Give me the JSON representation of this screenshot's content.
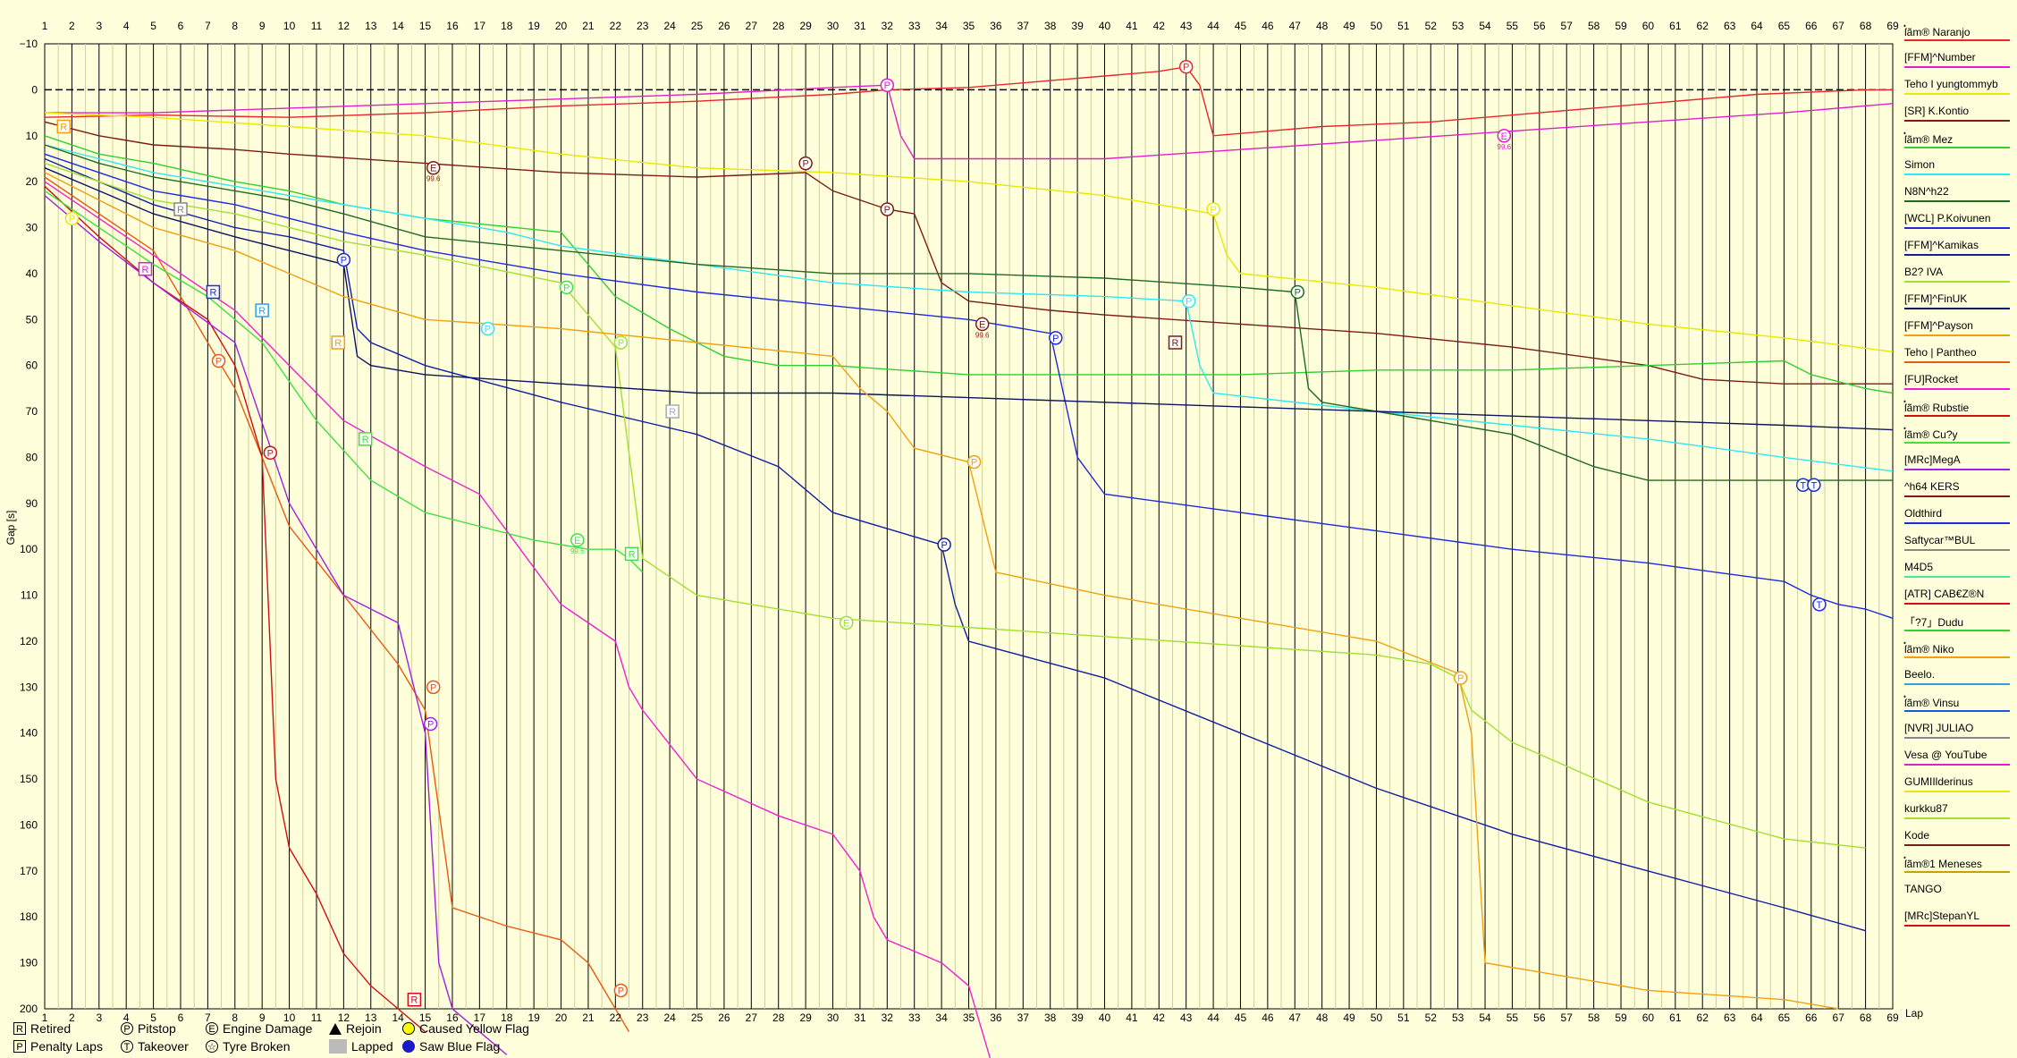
{
  "chart_data": {
    "type": "line",
    "xlabel": "Lap",
    "ylabel": "Gap [s]",
    "xlim": [
      1,
      69
    ],
    "ylim": [
      -10,
      200
    ],
    "y_inverted": true,
    "x_ticks": [
      1,
      2,
      3,
      4,
      5,
      6,
      7,
      8,
      9,
      10,
      11,
      12,
      13,
      14,
      15,
      16,
      17,
      18,
      19,
      20,
      21,
      22,
      23,
      24,
      25,
      26,
      27,
      28,
      29,
      30,
      31,
      32,
      33,
      34,
      35,
      36,
      37,
      38,
      39,
      40,
      41,
      42,
      43,
      44,
      45,
      46,
      47,
      48,
      49,
      50,
      51,
      52,
      53,
      54,
      55,
      56,
      57,
      58,
      59,
      60,
      61,
      62,
      63,
      64,
      65,
      66,
      67,
      68,
      69
    ],
    "y_ticks": [
      -10,
      0,
      10,
      20,
      30,
      40,
      50,
      60,
      70,
      80,
      90,
      100,
      110,
      120,
      130,
      140,
      150,
      160,
      170,
      180,
      190,
      200
    ],
    "grid": true,
    "legend_position": "right",
    "series": [
      {
        "name": "ſ๋ãm® Naranjo",
        "color": "#e8262b",
        "x": [
          1,
          5,
          10,
          15,
          20,
          25,
          30,
          32,
          35,
          38,
          40,
          42,
          43,
          43.5,
          44,
          48,
          52,
          56,
          60,
          64,
          68,
          69
        ],
        "y": [
          6,
          5.5,
          6,
          5,
          3.5,
          2.5,
          1,
          0,
          -0.5,
          -2,
          -3,
          -4,
          -5,
          -1,
          10,
          8,
          7,
          5,
          3,
          1,
          0,
          0
        ]
      },
      {
        "name": "[FFM]^Number",
        "color": "#e020c8",
        "x": [
          1,
          5,
          10,
          15,
          20,
          25,
          30,
          32,
          32.5,
          33,
          40,
          45,
          50,
          55,
          60,
          65,
          69
        ],
        "y": [
          5,
          5,
          4,
          3,
          2,
          1,
          -0.5,
          -1,
          10,
          15,
          15,
          13,
          11,
          9,
          7,
          5,
          3
        ]
      },
      {
        "name": "Teho I yungtommyb",
        "color": "#e8e800",
        "x": [
          1,
          5,
          10,
          15,
          20,
          25,
          30,
          35,
          40,
          43,
          44,
          44.5,
          45,
          50,
          55,
          60,
          65,
          69
        ],
        "y": [
          5,
          6,
          8,
          10,
          14,
          17,
          18,
          20,
          23,
          26,
          27,
          36,
          40,
          43,
          47,
          51,
          54,
          57
        ]
      },
      {
        "name": "[SR] K.Kontio",
        "color": "#7a1e12",
        "x": [
          1,
          3,
          5,
          8,
          10,
          15,
          20,
          25,
          29,
          30,
          32,
          33,
          34,
          35,
          38,
          40,
          45,
          50,
          55,
          60,
          62,
          65,
          69
        ],
        "y": [
          7,
          10,
          12,
          13,
          14,
          16,
          18,
          19,
          18,
          22,
          26,
          27,
          42,
          46,
          48,
          49,
          51,
          53,
          56,
          60,
          63,
          64,
          64
        ]
      },
      {
        "name": "ſ๋ãm® Mez",
        "color": "#30d030",
        "x": [
          1,
          3,
          5,
          8,
          10,
          12,
          15,
          20,
          22,
          24,
          26,
          28,
          30,
          35,
          40,
          45,
          50,
          55,
          60,
          65,
          66,
          68,
          69
        ],
        "y": [
          10,
          14,
          16,
          20,
          22,
          25,
          28,
          31,
          45,
          52,
          58,
          60,
          60,
          62,
          62,
          62,
          61,
          61,
          60,
          59,
          62,
          65,
          66
        ]
      },
      {
        "name": "Simon",
        "color": "#30e8f0",
        "x": [
          1,
          3,
          5,
          8,
          10,
          12,
          15,
          18,
          20,
          25,
          30,
          35,
          40,
          43,
          43.5,
          44,
          50,
          55,
          60,
          65,
          69
        ],
        "y": [
          12,
          15,
          18,
          21,
          23,
          25,
          28,
          31,
          34,
          38,
          42,
          44,
          45,
          46,
          60,
          66,
          70,
          73,
          76,
          80,
          83
        ]
      },
      {
        "name": "N8N^h22",
        "color": "#1f6b1f",
        "x": [
          1,
          3,
          5,
          8,
          10,
          12,
          15,
          20,
          25,
          30,
          35,
          40,
          45,
          47,
          47.5,
          48,
          50,
          52,
          55,
          58,
          60,
          65,
          69
        ],
        "y": [
          12,
          16,
          19,
          22,
          24,
          27,
          32,
          35,
          38,
          40,
          40,
          41,
          43,
          44,
          65,
          68,
          70,
          72,
          75,
          82,
          85,
          85,
          85
        ]
      },
      {
        "name": "[WCL] P.Koivunen",
        "color": "#1f2adb",
        "x": [
          1,
          3,
          5,
          8,
          10,
          12,
          15,
          20,
          25,
          30,
          35,
          38,
          39,
          40,
          45,
          50,
          55,
          60,
          65,
          66,
          67,
          68,
          69
        ],
        "y": [
          14,
          18,
          22,
          25,
          28,
          31,
          35,
          40,
          44,
          47,
          50,
          53,
          80,
          88,
          92,
          96,
          100,
          103,
          107,
          110,
          112,
          113,
          115
        ]
      },
      {
        "name": "[FFM]^Kamikas",
        "color": "#1020a0",
        "x": [
          1,
          3,
          5,
          8,
          10,
          12,
          12.5,
          13,
          15,
          20,
          25,
          28,
          30,
          34,
          34.5,
          35,
          40,
          45,
          50,
          55,
          60,
          65,
          68
        ],
        "y": [
          15,
          20,
          25,
          30,
          32,
          35,
          52,
          55,
          60,
          68,
          75,
          82,
          92,
          99,
          112,
          120,
          128,
          140,
          152,
          162,
          170,
          178,
          183
        ]
      },
      {
        "name": "B2? IVA",
        "color": "#a0e030",
        "x": [
          1,
          3,
          5,
          8,
          10,
          12,
          15,
          20,
          22,
          23,
          25,
          30,
          35,
          40,
          45,
          50,
          52,
          53,
          53.5,
          55,
          60,
          65,
          68
        ],
        "y": [
          16,
          20,
          24,
          27,
          30,
          33,
          36,
          42,
          56,
          102,
          110,
          115,
          117,
          119,
          121,
          123,
          125,
          128,
          135,
          142,
          155,
          163,
          165
        ]
      },
      {
        "name": "[FFM]^FinUK",
        "color": "#0a1460",
        "x": [
          1,
          3,
          5,
          8,
          10,
          12,
          12.5,
          13,
          15,
          20,
          25,
          30,
          35,
          40,
          45,
          50,
          55,
          60,
          65,
          69
        ],
        "y": [
          17,
          22,
          27,
          32,
          35,
          38,
          58,
          60,
          62,
          64,
          66,
          66,
          67,
          68,
          69,
          70,
          71,
          72,
          73,
          74
        ]
      },
      {
        "name": "[FFM]^Payson",
        "color": "#f0a010",
        "x": [
          1,
          3,
          5,
          8,
          10,
          12,
          15,
          20,
          25,
          30,
          31,
          32,
          33,
          35,
          36,
          40,
          45,
          50,
          53,
          53.5,
          54,
          60,
          65,
          67
        ],
        "y": [
          18,
          24,
          30,
          35,
          40,
          45,
          50,
          52,
          55,
          58,
          65,
          70,
          78,
          81,
          105,
          110,
          115,
          120,
          127,
          140,
          190,
          196,
          198,
          200
        ]
      },
      {
        "name": "Teho | Pantheo",
        "color": "#e85a10",
        "x": [
          1,
          3,
          5,
          7,
          8,
          9,
          10,
          12,
          14,
          15,
          16,
          18,
          20,
          21,
          22,
          22.5
        ],
        "y": [
          19,
          27,
          35,
          55,
          65,
          80,
          95,
          110,
          125,
          135,
          178,
          182,
          185,
          190,
          200,
          205
        ]
      },
      {
        "name": "[FU]Rocket",
        "color": "#f020d0",
        "x": [
          1,
          3,
          5,
          8,
          10,
          12,
          15,
          17,
          18,
          20,
          22,
          22.5,
          23,
          25,
          28,
          30,
          31,
          31.5,
          32,
          34,
          35,
          36
        ],
        "y": [
          20,
          28,
          36,
          48,
          60,
          72,
          82,
          88,
          96,
          112,
          120,
          130,
          135,
          150,
          158,
          162,
          170,
          180,
          185,
          190,
          195,
          215
        ]
      },
      {
        "name": "ſ๋ãm® Rubstie",
        "color": "#d01010",
        "x": [
          1,
          3,
          5,
          7,
          8,
          9,
          9.5,
          10,
          11,
          12,
          13,
          14,
          15
        ],
        "y": [
          21,
          32,
          42,
          50,
          60,
          80,
          150,
          165,
          175,
          188,
          195,
          200,
          205
        ]
      },
      {
        "name": "ſ๋ãm® Cu?y",
        "color": "#40e040",
        "x": [
          1,
          3,
          5,
          7,
          9,
          11,
          13,
          15,
          17,
          19,
          21,
          22,
          22.5,
          23
        ],
        "y": [
          22,
          30,
          38,
          45,
          55,
          72,
          85,
          92,
          95,
          98,
          100,
          100,
          102,
          105
        ]
      },
      {
        "name": "[MRc]MegA",
        "color": "#a020e0",
        "x": [
          1,
          3,
          5,
          8,
          10,
          12,
          13,
          14,
          15,
          15.5,
          16,
          17,
          18
        ],
        "y": [
          23,
          33,
          42,
          55,
          90,
          110,
          113,
          116,
          140,
          190,
          200,
          205,
          210
        ]
      }
    ],
    "markers": [
      {
        "label": "P",
        "lap": 43,
        "gap": -5,
        "color": "#e8262b"
      },
      {
        "label": "P",
        "lap": 32,
        "gap": -1,
        "color": "#e020c8"
      },
      {
        "label": "E",
        "lap": 54.7,
        "gap": 10,
        "color": "#e020c8",
        "note": "99.6"
      },
      {
        "label": "E",
        "lap": 15.3,
        "gap": 17,
        "color": "#7a1e12",
        "note": "99.6"
      },
      {
        "label": "P",
        "lap": 29,
        "gap": 16,
        "color": "#7a1e12"
      },
      {
        "label": "P",
        "lap": 32,
        "gap": 26,
        "color": "#7a1e12"
      },
      {
        "label": "P",
        "lap": 44,
        "gap": 26,
        "color": "#e8e800"
      },
      {
        "label": "R",
        "lap": 1.7,
        "gap": 8,
        "color": "#f0a010"
      },
      {
        "label": "P",
        "lap": 2,
        "gap": 28,
        "color": "#e8e800"
      },
      {
        "label": "R",
        "lap": 6,
        "gap": 26,
        "color": "#888888"
      },
      {
        "label": "P",
        "lap": 12,
        "gap": 37,
        "color": "#1f2adb"
      },
      {
        "label": "R",
        "lap": 4.7,
        "gap": 39,
        "color": "#e020c8"
      },
      {
        "label": "R",
        "lap": 7.2,
        "gap": 44,
        "color": "#1f2adb"
      },
      {
        "label": "R",
        "lap": 9,
        "gap": 48,
        "color": "#30a0e8"
      },
      {
        "label": "P",
        "lap": 20.2,
        "gap": 43,
        "color": "#40e040"
      },
      {
        "label": "P",
        "lap": 43.1,
        "gap": 46,
        "color": "#30e8f0"
      },
      {
        "label": "P",
        "lap": 47.1,
        "gap": 44,
        "color": "#1f6b1f"
      },
      {
        "label": "P",
        "lap": 17.3,
        "gap": 52,
        "color": "#30e8f0"
      },
      {
        "label": "E",
        "lap": 35.5,
        "gap": 51,
        "color": "#7a1e12",
        "note": "99.6"
      },
      {
        "label": "P",
        "lap": 38.2,
        "gap": 54,
        "color": "#1f2adb"
      },
      {
        "label": "R",
        "lap": 42.6,
        "gap": 55,
        "color": "#7a1e12"
      },
      {
        "label": "P",
        "lap": 22.2,
        "gap": 55,
        "color": "#a0e030"
      },
      {
        "label": "R",
        "lap": 11.8,
        "gap": 55,
        "color": "#f0a010"
      },
      {
        "label": "P",
        "lap": 7.4,
        "gap": 59,
        "color": "#e85a10"
      },
      {
        "label": "R",
        "lap": 24.1,
        "gap": 70,
        "color": "#aaaaaa"
      },
      {
        "label": "R",
        "lap": 12.8,
        "gap": 76,
        "color": "#40e040"
      },
      {
        "label": "P",
        "lap": 9.3,
        "gap": 79,
        "color": "#d01010"
      },
      {
        "label": "P",
        "lap": 35.2,
        "gap": 81,
        "color": "#f0a010"
      },
      {
        "label": "T",
        "lap": 65.7,
        "gap": 86,
        "color": "#1f2adb"
      },
      {
        "label": "T",
        "lap": 66.1,
        "gap": 86,
        "color": "#1f2adb"
      },
      {
        "label": "E",
        "lap": 20.6,
        "gap": 98,
        "color": "#40e040",
        "note": "99.6"
      },
      {
        "label": "R",
        "lap": 22.6,
        "gap": 101,
        "color": "#40e040"
      },
      {
        "label": "P",
        "lap": 34.1,
        "gap": 99,
        "color": "#1020a0"
      },
      {
        "label": "T",
        "lap": 66.3,
        "gap": 112,
        "color": "#1f2adb"
      },
      {
        "label": "E",
        "lap": 30.5,
        "gap": 116,
        "color": "#a0e030"
      },
      {
        "label": "P",
        "lap": 53.1,
        "gap": 128,
        "color": "#f0a010"
      },
      {
        "label": "P",
        "lap": 15.3,
        "gap": 130,
        "color": "#e85a10"
      },
      {
        "label": "P",
        "lap": 15.2,
        "gap": 138,
        "color": "#a020e0"
      },
      {
        "label": "R",
        "lap": 14.6,
        "gap": 198,
        "color": "#d01010"
      },
      {
        "label": "P",
        "lap": 22.2,
        "gap": 196,
        "color": "#e85a10"
      }
    ]
  },
  "drivers": [
    {
      "name": "ſ๋ãm® Naranjo",
      "color": "#e8262b"
    },
    {
      "name": "[FFM]^Number",
      "color": "#e020c8"
    },
    {
      "name": "Teho I yungtommyb",
      "color": "#e8e800"
    },
    {
      "name": "[SR] K.Kontio",
      "color": "#7a1e12"
    },
    {
      "name": "ſ๋ãm® Mez",
      "color": "#30d030"
    },
    {
      "name": "Simon",
      "color": "#30e8f0"
    },
    {
      "name": "N8N^h22",
      "color": "#1f6b1f"
    },
    {
      "name": "[WCL] P.Koivunen",
      "color": "#1f2adb"
    },
    {
      "name": "[FFM]^Kamikas",
      "color": "#1020a0"
    },
    {
      "name": "B2? IVA",
      "color": "#a0e030"
    },
    {
      "name": "[FFM]^FinUK",
      "color": "#0a1460"
    },
    {
      "name": "[FFM]^Payson",
      "color": "#f0a010"
    },
    {
      "name": "Teho | Pantheo",
      "color": "#e85a10"
    },
    {
      "name": "[FU]Rocket",
      "color": "#f020d0"
    },
    {
      "name": "ſ๋ãm® Rubstie",
      "color": "#d01010"
    },
    {
      "name": "ſ๋ãm® Cu?y",
      "color": "#40e040"
    },
    {
      "name": "[MRc]MegA",
      "color": "#a020e0"
    },
    {
      "name": "^h64 KERS",
      "color": "#7a1e12"
    },
    {
      "name": "Oldthird",
      "color": "#1f2adb"
    },
    {
      "name": "Saftycar™BUL",
      "color": "#888888"
    },
    {
      "name": "M4D5",
      "color": "#40e8a0"
    },
    {
      "name": "[ATR] CAB€Z®N",
      "color": "#d01010"
    },
    {
      "name": "「?7」Dudu",
      "color": "#30d030"
    },
    {
      "name": "ſ๋ãm® Niko",
      "color": "#f0a010"
    },
    {
      "name": "Beelo.",
      "color": "#30a0e8"
    },
    {
      "name": "ſ๋ãm® Vinsu",
      "color": "#1f5ad0"
    },
    {
      "name": "[NVR] JULIAO",
      "color": "#888888"
    },
    {
      "name": "Vesa @ YouTube",
      "color": "#e020c8"
    },
    {
      "name": "GUMIIlderinus",
      "color": "#e8e800"
    },
    {
      "name": "kurkku87",
      "color": "#a0e030"
    },
    {
      "name": "Kode",
      "color": "#7a1e12"
    },
    {
      "name": "ſ๋ãm®1 Meneses",
      "color": "#c8a000"
    },
    {
      "name": "TANGO",
      "color": "#ffffdc"
    },
    {
      "name": "[MRc]StepanYL",
      "color": "#d01010"
    }
  ],
  "legend": {
    "retired": "Retired",
    "pitstop": "Pitstop",
    "engine_damage": "Engine Damage",
    "rejoin": "Rejoin",
    "yellow_flag": "Caused Yellow Flag",
    "penalty_laps": "Penalty Laps",
    "takeover": "Takeover",
    "tyre_broken": "Tyre Broken",
    "lapped": "Lapped",
    "blue_flag": "Saw Blue Flag",
    "sym_r": "R",
    "sym_p": "P",
    "sym_e": "E",
    "sym_t": "T",
    "sym_pp": "P"
  }
}
